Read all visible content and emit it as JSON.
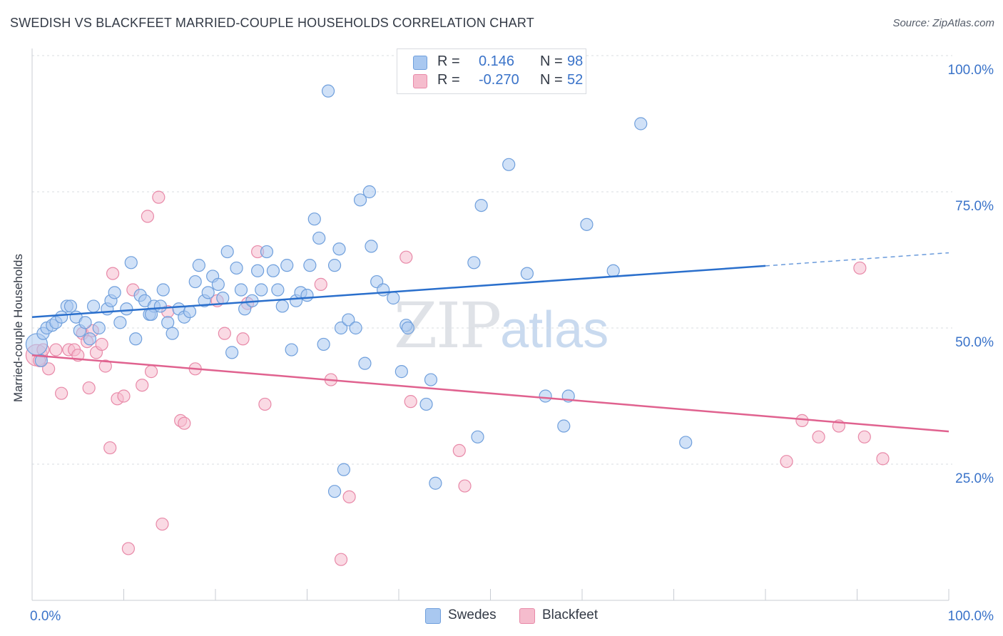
{
  "title": "SWEDISH VS BLACKFEET MARRIED-COUPLE HOUSEHOLDS CORRELATION CHART",
  "source": "Source: ZipAtlas.com",
  "watermark": {
    "zip": "ZIP",
    "atlas": "atlas"
  },
  "colors": {
    "swedes_fill": "#a9c8f0",
    "swedes_stroke": "#6f9fdc",
    "swedes_line": "#2a6fcc",
    "blackfeet_fill": "#f5bccd",
    "blackfeet_stroke": "#e889a8",
    "blackfeet_line": "#e0628f",
    "axis_label": "#3a73c9",
    "grid": "#d9dce2"
  },
  "legend": {
    "rows": [
      {
        "r_label": "R =",
        "r_value": "0.146",
        "n_label": "N =",
        "n_value": "98"
      },
      {
        "r_label": "R =",
        "r_value": "-0.270",
        "n_label": "N =",
        "n_value": "52"
      }
    ],
    "bottom": [
      "Swedes",
      "Blackfeet"
    ]
  },
  "chart_data": {
    "type": "scatter",
    "title": "SWEDISH VS BLACKFEET MARRIED-COUPLE HOUSEHOLDS CORRELATION CHART",
    "xlabel": "",
    "ylabel": "Married-couple Households",
    "xlim": [
      0,
      100
    ],
    "ylim": [
      0,
      100
    ],
    "x_tick_labels": [
      "0.0%",
      "100.0%"
    ],
    "y_ticks": [
      25,
      50,
      75,
      100
    ],
    "y_tick_labels": [
      "25.0%",
      "50.0%",
      "75.0%",
      "100.0%"
    ],
    "grid": "horizontal dashed",
    "legend_position": "top-center",
    "series": [
      {
        "name": "Swedes",
        "r": 0.146,
        "n": 98,
        "trend": {
          "x0": 0,
          "y0": 52.0,
          "x1": 80,
          "y1": 61.4,
          "dashed_to_x": 100,
          "dashed_to_y": 63.8
        },
        "points": [
          [
            0.5,
            47.0
          ],
          [
            1.0,
            44.0
          ],
          [
            1.2,
            49.0
          ],
          [
            1.6,
            50.0
          ],
          [
            2.2,
            50.5
          ],
          [
            2.6,
            51.0
          ],
          [
            3.2,
            52.0
          ],
          [
            3.8,
            54.0
          ],
          [
            4.2,
            54.0
          ],
          [
            4.8,
            52.0
          ],
          [
            5.2,
            49.5
          ],
          [
            5.8,
            51.0
          ],
          [
            6.3,
            48.0
          ],
          [
            6.7,
            54.0
          ],
          [
            7.3,
            50.0
          ],
          [
            8.2,
            53.5
          ],
          [
            8.6,
            55.0
          ],
          [
            9.0,
            56.5
          ],
          [
            9.6,
            51.0
          ],
          [
            10.3,
            53.5
          ],
          [
            10.8,
            62.0
          ],
          [
            11.3,
            48.0
          ],
          [
            11.8,
            56.0
          ],
          [
            12.3,
            55.0
          ],
          [
            12.8,
            52.5
          ],
          [
            13.3,
            54.0
          ],
          [
            14.0,
            54.0
          ],
          [
            14.3,
            57.0
          ],
          [
            14.8,
            51.0
          ],
          [
            15.3,
            49.0
          ],
          [
            16.0,
            53.5
          ],
          [
            16.6,
            52.0
          ],
          [
            17.2,
            53.0
          ],
          [
            17.8,
            58.5
          ],
          [
            18.2,
            61.5
          ],
          [
            18.8,
            55.0
          ],
          [
            19.2,
            56.5
          ],
          [
            19.7,
            59.5
          ],
          [
            20.3,
            58.0
          ],
          [
            20.8,
            55.5
          ],
          [
            21.3,
            64.0
          ],
          [
            21.8,
            45.5
          ],
          [
            22.3,
            61.0
          ],
          [
            22.8,
            57.0
          ],
          [
            23.2,
            53.5
          ],
          [
            24.0,
            55.0
          ],
          [
            24.6,
            60.5
          ],
          [
            25.0,
            57.0
          ],
          [
            25.6,
            64.0
          ],
          [
            26.3,
            60.5
          ],
          [
            26.8,
            57.0
          ],
          [
            27.3,
            54.0
          ],
          [
            27.8,
            61.5
          ],
          [
            28.3,
            46.0
          ],
          [
            28.8,
            55.0
          ],
          [
            29.3,
            56.5
          ],
          [
            30.3,
            61.5
          ],
          [
            30.8,
            70.0
          ],
          [
            31.3,
            66.5
          ],
          [
            31.8,
            47.0
          ],
          [
            32.3,
            93.5
          ],
          [
            33.0,
            61.5
          ],
          [
            33.5,
            64.5
          ],
          [
            33.7,
            50.0
          ],
          [
            34.5,
            51.5
          ],
          [
            35.3,
            50.0
          ],
          [
            35.8,
            73.5
          ],
          [
            36.3,
            43.5
          ],
          [
            36.8,
            75.0
          ],
          [
            37.0,
            65.0
          ],
          [
            37.6,
            58.5
          ],
          [
            38.3,
            57.0
          ],
          [
            39.4,
            55.5
          ],
          [
            40.3,
            42.0
          ],
          [
            40.8,
            50.5
          ],
          [
            41.0,
            50.0
          ],
          [
            42.0,
            100.0
          ],
          [
            43.0,
            36.0
          ],
          [
            43.5,
            40.5
          ],
          [
            44.0,
            21.5
          ],
          [
            46.0,
            100.0
          ],
          [
            48.2,
            62.0
          ],
          [
            48.6,
            30.0
          ],
          [
            49.0,
            72.5
          ],
          [
            52.0,
            80.0
          ],
          [
            54.0,
            60.0
          ],
          [
            56.0,
            37.5
          ],
          [
            57.0,
            95.5
          ],
          [
            58.0,
            32.0
          ],
          [
            58.5,
            37.5
          ],
          [
            60.5,
            69.0
          ],
          [
            63.4,
            60.5
          ],
          [
            66.4,
            87.5
          ],
          [
            71.3,
            29.0
          ],
          [
            34.0,
            24.0
          ],
          [
            33.0,
            20.0
          ],
          [
            13.0,
            52.5
          ],
          [
            30.0,
            56.0
          ]
        ]
      },
      {
        "name": "Blackfeet",
        "r": -0.27,
        "n": 52,
        "trend": {
          "x0": 0,
          "y0": 45.0,
          "x1": 100,
          "y1": 31.0
        },
        "points": [
          [
            0.5,
            45.0
          ],
          [
            0.8,
            44.0
          ],
          [
            1.2,
            46.0
          ],
          [
            1.8,
            42.5
          ],
          [
            2.6,
            46.0
          ],
          [
            3.2,
            38.0
          ],
          [
            4.0,
            46.0
          ],
          [
            4.6,
            46.0
          ],
          [
            5.0,
            45.0
          ],
          [
            5.5,
            49.0
          ],
          [
            6.0,
            47.5
          ],
          [
            6.2,
            39.0
          ],
          [
            6.6,
            49.5
          ],
          [
            7.0,
            45.5
          ],
          [
            7.6,
            47.0
          ],
          [
            8.0,
            43.0
          ],
          [
            8.5,
            28.0
          ],
          [
            8.8,
            60.0
          ],
          [
            9.3,
            37.0
          ],
          [
            10.0,
            37.5
          ],
          [
            10.5,
            9.5
          ],
          [
            11.0,
            57.0
          ],
          [
            12.0,
            39.5
          ],
          [
            12.6,
            70.5
          ],
          [
            13.0,
            42.0
          ],
          [
            13.8,
            74.0
          ],
          [
            14.2,
            14.0
          ],
          [
            14.8,
            53.0
          ],
          [
            16.2,
            33.0
          ],
          [
            16.6,
            32.5
          ],
          [
            17.8,
            42.5
          ],
          [
            20.2,
            55.0
          ],
          [
            21.0,
            49.0
          ],
          [
            23.0,
            48.0
          ],
          [
            23.5,
            54.5
          ],
          [
            24.6,
            64.0
          ],
          [
            25.4,
            36.0
          ],
          [
            31.5,
            58.0
          ],
          [
            32.6,
            40.5
          ],
          [
            33.7,
            7.5
          ],
          [
            34.6,
            19.0
          ],
          [
            40.8,
            63.0
          ],
          [
            41.3,
            36.5
          ],
          [
            46.6,
            27.5
          ],
          [
            47.2,
            21.0
          ],
          [
            82.3,
            25.5
          ],
          [
            84.0,
            33.0
          ],
          [
            85.8,
            30.0
          ],
          [
            88.0,
            32.0
          ],
          [
            90.3,
            61.0
          ],
          [
            90.8,
            30.0
          ],
          [
            92.8,
            26.0
          ]
        ]
      }
    ]
  }
}
